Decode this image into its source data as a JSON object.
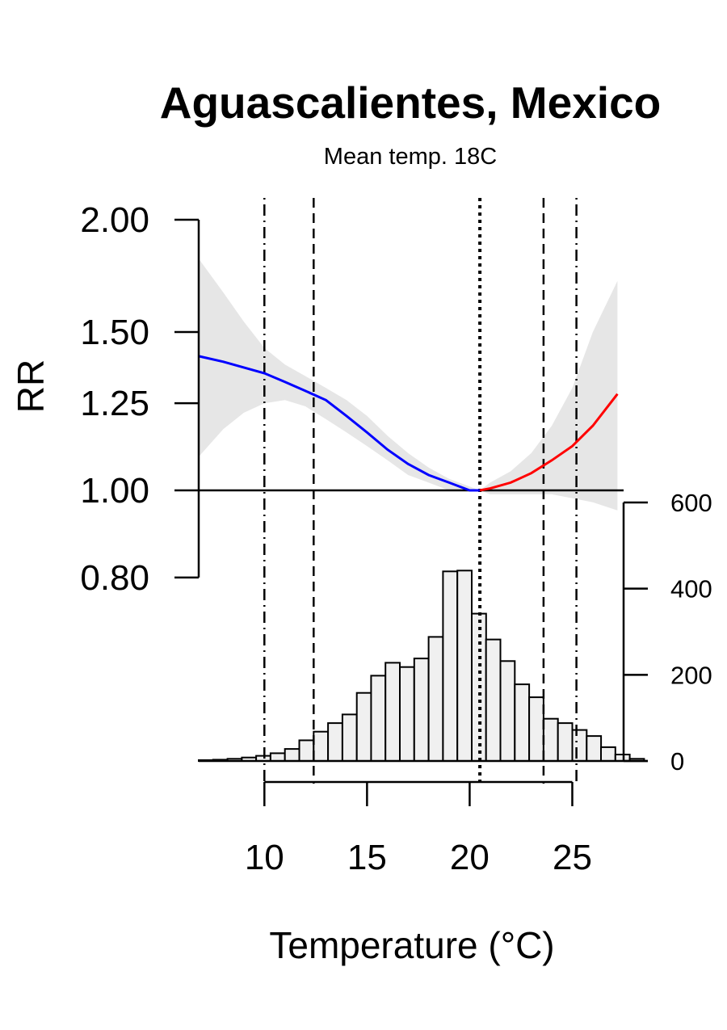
{
  "chart_data": {
    "type": "line",
    "title": "Aguascalientes, Mexico",
    "subtitle": "Mean temp. 18C",
    "xlabel": "Temperature (°C)",
    "ylabel": "RR",
    "xlim": [
      6.8,
      27.5
    ],
    "x_ticks": [
      10,
      15,
      20,
      25
    ],
    "y_scale": "log",
    "ylim": [
      0.8,
      2.0
    ],
    "y_ticks": [
      "0.80",
      "1.00",
      "1.25",
      "1.50",
      "2.00"
    ],
    "y_tick_values": [
      0.8,
      1.0,
      1.25,
      1.5,
      2.0
    ],
    "reference_line_y": 1.0,
    "vertical_lines": [
      {
        "x": 10.0,
        "style": "dotdash"
      },
      {
        "x": 12.4,
        "style": "dashed"
      },
      {
        "x": 20.5,
        "style": "dotted"
      },
      {
        "x": 23.6,
        "style": "dashed"
      },
      {
        "x": 25.2,
        "style": "dotdash"
      }
    ],
    "series": [
      {
        "color": "#0000ff",
        "x": [
          6.8,
          8.0,
          9.0,
          10.0,
          11.0,
          12.0,
          13.0,
          14.0,
          15.0,
          16.0,
          17.0,
          18.0,
          19.0,
          20.0,
          20.5
        ],
        "y": [
          1.41,
          1.39,
          1.37,
          1.35,
          1.32,
          1.29,
          1.26,
          1.21,
          1.16,
          1.11,
          1.07,
          1.04,
          1.02,
          1.0,
          1.0
        ]
      },
      {
        "color": "#ff0000",
        "x": [
          20.5,
          21.0,
          22.0,
          23.0,
          24.0,
          25.0,
          26.0,
          27.2
        ],
        "y": [
          1.0,
          1.005,
          1.02,
          1.045,
          1.08,
          1.12,
          1.18,
          1.28
        ]
      }
    ],
    "confidence_band": {
      "color": "#e6e6e6",
      "x": [
        6.8,
        8.0,
        9.0,
        10.0,
        11.0,
        12.0,
        13.0,
        14.0,
        15.0,
        16.0,
        17.0,
        18.0,
        19.0,
        20.0,
        20.5,
        21.0,
        22.0,
        23.0,
        24.0,
        25.0,
        26.0,
        27.2
      ],
      "lower": [
        1.09,
        1.17,
        1.22,
        1.25,
        1.26,
        1.24,
        1.2,
        1.16,
        1.12,
        1.08,
        1.04,
        1.02,
        1.0,
        1.0,
        1.0,
        0.99,
        0.99,
        0.99,
        0.99,
        0.98,
        0.97,
        0.95
      ],
      "upper": [
        1.81,
        1.66,
        1.54,
        1.44,
        1.38,
        1.34,
        1.3,
        1.26,
        1.21,
        1.15,
        1.1,
        1.06,
        1.03,
        1.01,
        1.0,
        1.02,
        1.05,
        1.1,
        1.18,
        1.3,
        1.5,
        1.71
      ]
    },
    "histogram": {
      "bin_width": 0.7,
      "bin_start": 6.8,
      "counts": [
        2,
        3,
        5,
        8,
        12,
        18,
        28,
        48,
        68,
        88,
        108,
        158,
        198,
        228,
        218,
        238,
        288,
        440,
        442,
        342,
        282,
        232,
        178,
        148,
        98,
        88,
        72,
        58,
        32,
        15,
        5
      ],
      "axis_ticks": [
        0,
        200,
        400,
        600
      ],
      "ylim": [
        0,
        600
      ]
    }
  }
}
